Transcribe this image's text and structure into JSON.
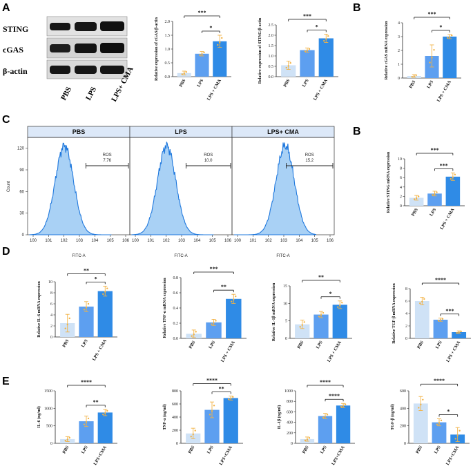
{
  "panels": {
    "a": "A",
    "b1": "B",
    "c": "C",
    "b2": "B",
    "d": "D",
    "e": "E"
  },
  "colors": {
    "pbs": "#cfe2f6",
    "lps": "#5d9ff0",
    "cma": "#2f8be6",
    "errbar": "#f2b244",
    "dot": "#f2b244",
    "flow_fill": "#a9d1f5",
    "flow_line": "#1f78dd",
    "blot_band": "#161616"
  },
  "blot": {
    "rows": [
      "STING",
      "cGAS",
      "β-actin"
    ],
    "conditions": [
      "PBS",
      "LPS",
      "LPS+ CMA"
    ]
  },
  "flow": {
    "headers": [
      "PBS",
      "LPS",
      "LPS+ CMA"
    ],
    "gate_label": "ROS",
    "gate_values": [
      "7.76",
      "10.0",
      "15.2"
    ],
    "xlabel": "FITC-A",
    "ylabel": "Count",
    "yticks": [
      "0",
      "30",
      "60",
      "90",
      "120"
    ],
    "xticks": [
      "10^0",
      "10^1",
      "10^2",
      "10^3",
      "10^4",
      "10^5",
      "10^6"
    ]
  },
  "chart_data": [
    {
      "id": "A_cgas",
      "type": "bar",
      "categories": [
        "PBS",
        "LPS",
        "LPS + CMA"
      ],
      "values": [
        0.13,
        0.83,
        1.28
      ],
      "errors": [
        0.07,
        0.08,
        0.22
      ],
      "ylim": [
        0,
        2.0
      ],
      "yticks": [
        0,
        0.5,
        1.0,
        1.5,
        2.0
      ],
      "ylabel": "Relative expression of cGAS/β-actin",
      "sig": [
        {
          "from": 1,
          "to": 2,
          "label": "*"
        },
        {
          "from": 0,
          "to": 2,
          "label": "***"
        }
      ]
    },
    {
      "id": "A_sting",
      "type": "bar",
      "categories": [
        "PBS",
        "LPS",
        "LPS + CMA"
      ],
      "values": [
        0.55,
        1.28,
        1.85
      ],
      "errors": [
        0.2,
        0.1,
        0.2
      ],
      "ylim": [
        0,
        2.5
      ],
      "yticks": [
        0,
        0.5,
        1.0,
        1.5,
        2.0,
        2.5
      ],
      "ylabel": "Relative expression of STING/β-actin",
      "sig": [
        {
          "from": 1,
          "to": 2,
          "label": "*"
        },
        {
          "from": 0,
          "to": 2,
          "label": "***"
        }
      ]
    },
    {
      "id": "B_cgas",
      "type": "bar",
      "categories": [
        "PBS",
        "LPS",
        "LPS + CMA"
      ],
      "values": [
        0.15,
        1.6,
        3.0
      ],
      "errors": [
        0.1,
        0.8,
        0.15
      ],
      "ylim": [
        0,
        4
      ],
      "yticks": [
        0,
        1,
        2,
        3,
        4
      ],
      "ylabel": "Relative cGAS mRNA expression",
      "sig": [
        {
          "from": 1,
          "to": 2,
          "label": "*"
        },
        {
          "from": 0,
          "to": 2,
          "label": "***"
        }
      ]
    },
    {
      "id": "B_sting",
      "type": "bar",
      "categories": [
        "PBS",
        "LPS",
        "LPS + CMA"
      ],
      "values": [
        1.7,
        2.6,
        6.2
      ],
      "errors": [
        0.5,
        0.5,
        0.8
      ],
      "ylim": [
        0,
        10
      ],
      "yticks": [
        0,
        2,
        4,
        6,
        8,
        10
      ],
      "ylabel": "Relative STING mRNA expression",
      "sig": [
        {
          "from": 1,
          "to": 2,
          "label": "***"
        },
        {
          "from": 0,
          "to": 2,
          "label": "***"
        }
      ]
    },
    {
      "id": "D_il6",
      "type": "bar",
      "categories": [
        "PBS",
        "LPS",
        "LPS + CMA"
      ],
      "values": [
        2.5,
        5.5,
        8.3
      ],
      "errors": [
        1.6,
        0.9,
        0.9
      ],
      "ylim": [
        0,
        10
      ],
      "yticks": [
        0,
        2,
        4,
        6,
        8,
        10
      ],
      "ylabel": "Relative IL-6 mRNA expression",
      "sig": [
        {
          "from": 1,
          "to": 2,
          "label": "*"
        },
        {
          "from": 0,
          "to": 2,
          "label": "**"
        }
      ]
    },
    {
      "id": "D_tnf",
      "type": "bar",
      "categories": [
        "PBS",
        "LPS",
        "LPS + CMA"
      ],
      "values": [
        0.06,
        0.21,
        0.52
      ],
      "errors": [
        0.05,
        0.04,
        0.06
      ],
      "ylim": [
        0,
        0.8
      ],
      "yticks": [
        0.0,
        0.2,
        0.4,
        0.6,
        0.8
      ],
      "ylabel": "Relative TNF-α mRNA expression",
      "sig": [
        {
          "from": 1,
          "to": 2,
          "label": "**"
        },
        {
          "from": 0,
          "to": 2,
          "label": "***"
        }
      ]
    },
    {
      "id": "D_il1b",
      "type": "bar",
      "categories": [
        "PBS",
        "LPS",
        "LPS + CMA"
      ],
      "values": [
        4.0,
        6.8,
        9.6
      ],
      "errors": [
        1.2,
        0.9,
        1.1
      ],
      "ylim": [
        0,
        15
      ],
      "yticks": [
        0,
        5,
        10,
        15
      ],
      "ylabel": "Relative IL-1β mRNA expression",
      "sig": [
        {
          "from": 1,
          "to": 2,
          "label": "*"
        },
        {
          "from": 0,
          "to": 2,
          "label": "**"
        }
      ]
    },
    {
      "id": "D_tgfb",
      "type": "bar",
      "categories": [
        "PBS",
        "LPS",
        "LPS + CMA"
      ],
      "values": [
        6.0,
        3.0,
        1.0
      ],
      "errors": [
        0.6,
        0.25,
        0.2
      ],
      "ylim": [
        0,
        8
      ],
      "yticks": [
        0,
        2,
        4,
        6,
        8
      ],
      "ylabel": "Relative TGF-β mRNA expression",
      "sig": [
        {
          "from": 1,
          "to": 2,
          "label": "***"
        },
        {
          "from": 0,
          "to": 2,
          "label": "****"
        }
      ]
    },
    {
      "id": "E_il6",
      "type": "bar",
      "categories": [
        "PBS",
        "LPS",
        "LPS+CMA"
      ],
      "values": [
        120,
        630,
        880
      ],
      "errors": [
        70,
        150,
        90
      ],
      "ylim": [
        0,
        1500
      ],
      "yticks": [
        0,
        500,
        1000,
        1500
      ],
      "ylabel": "IL-6 (ng/ml)",
      "sig": [
        {
          "from": 1,
          "to": 2,
          "label": "**"
        },
        {
          "from": 0,
          "to": 2,
          "label": "****"
        }
      ]
    },
    {
      "id": "E_tnf",
      "type": "bar",
      "categories": [
        "PBS",
        "LPS",
        "LPS+CMA"
      ],
      "values": [
        150,
        510,
        690
      ],
      "errors": [
        80,
        120,
        30
      ],
      "ylim": [
        0,
        800
      ],
      "yticks": [
        0,
        200,
        400,
        600,
        800
      ],
      "ylabel": "TNF-α (ng/ml)",
      "sig": [
        {
          "from": 1,
          "to": 2,
          "label": "**"
        },
        {
          "from": 0,
          "to": 2,
          "label": "****"
        }
      ]
    },
    {
      "id": "E_il1b",
      "type": "bar",
      "categories": [
        "PBS",
        "LPS",
        "LPS+CMA"
      ],
      "values": [
        80,
        520,
        720
      ],
      "errors": [
        40,
        50,
        40
      ],
      "ylim": [
        0,
        1000
      ],
      "yticks": [
        0,
        200,
        400,
        600,
        800,
        1000
      ],
      "ylabel": "IL-1β (ng/ml)",
      "sig": [
        {
          "from": 1,
          "to": 2,
          "label": "****"
        },
        {
          "from": 0,
          "to": 2,
          "label": "****"
        }
      ]
    },
    {
      "id": "E_tgfb",
      "type": "bar",
      "categories": [
        "PBS",
        "LPS",
        "LPS+CMA"
      ],
      "values": [
        455,
        240,
        100
      ],
      "errors": [
        80,
        40,
        80
      ],
      "ylim": [
        0,
        600
      ],
      "yticks": [
        0,
        200,
        400,
        600
      ],
      "ylabel": "TGF-β (ng/ml)",
      "sig": [
        {
          "from": 1,
          "to": 2,
          "label": "*"
        },
        {
          "from": 0,
          "to": 2,
          "label": "****"
        }
      ]
    }
  ]
}
